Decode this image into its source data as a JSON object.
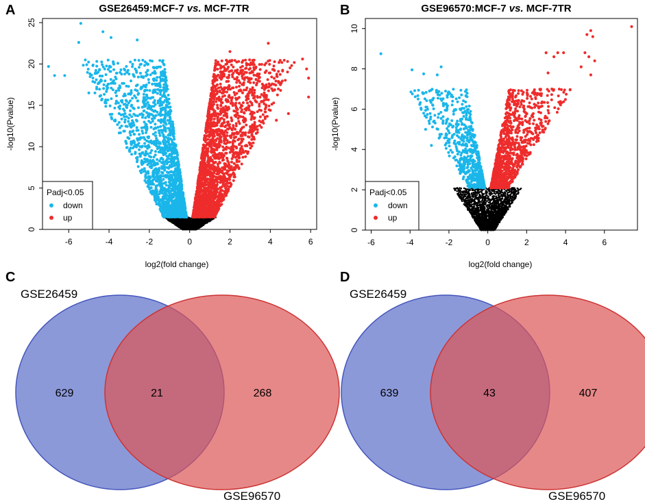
{
  "chart_data": [
    {
      "panel": "A",
      "type": "scatter",
      "title_prefix": "GSE26459:MCF-7",
      "title_vs": "vs.",
      "title_suffix": "MCF-7TR",
      "xlabel": "log2(fold change)",
      "ylabel": "-log10(Pvalue)",
      "xlim": [
        -7.3,
        6.3
      ],
      "ylim": [
        0,
        25.5
      ],
      "xticks": [
        -6,
        -4,
        -2,
        0,
        2,
        4,
        6
      ],
      "yticks": [
        0,
        5,
        10,
        15,
        20,
        25
      ],
      "significance_threshold": 1.5,
      "legend": {
        "title": "Padj<0.05",
        "entries": [
          "down",
          "up"
        ],
        "position": "bottom-left"
      },
      "colors": {
        "down": "#1ab6ea",
        "up": "#ee2c2c",
        "ns": "#000000"
      },
      "outliers_down": [
        [
          -5.4,
          24.9
        ],
        [
          -4.3,
          23.9
        ],
        [
          -3.9,
          23.2
        ],
        [
          -5.5,
          22.6
        ],
        [
          -2.6,
          22.9
        ],
        [
          -7.0,
          19.7
        ],
        [
          -6.7,
          18.6
        ],
        [
          -6.2,
          18.6
        ],
        [
          -4.8,
          19.8
        ],
        [
          -4.7,
          16.5
        ],
        [
          -5.0,
          16.5
        ],
        [
          -2.7,
          19.4
        ],
        [
          -1.8,
          19.6
        ],
        [
          -3.5,
          14.0
        ]
      ],
      "outliers_up": [
        [
          3.9,
          22.5
        ],
        [
          5.6,
          20.6
        ],
        [
          5.8,
          19.4
        ],
        [
          5.9,
          18.3
        ],
        [
          4.5,
          17.5
        ],
        [
          5.9,
          16.0
        ],
        [
          4.0,
          14.4
        ],
        [
          3.8,
          15.7
        ],
        [
          4.9,
          14.0
        ],
        [
          2.0,
          21.5
        ],
        [
          2.6,
          20.2
        ],
        [
          3.7,
          16.5
        ],
        [
          4.3,
          13.2
        ]
      ],
      "n_down": 1900,
      "n_up": 2300,
      "n_ns": 1500,
      "spread_down": 3.3,
      "spread_up": 3.2,
      "max_y": 20.5
    },
    {
      "panel": "B",
      "type": "scatter",
      "title_prefix": "GSE96570:MCF-7",
      "title_vs": "vs.",
      "title_suffix": "MCF-7TR",
      "xlabel": "log2(fold change)",
      "ylabel": "-log10(Pvalue)",
      "xlim": [
        -6.3,
        7.7
      ],
      "ylim": [
        0,
        10.5
      ],
      "xticks": [
        -6,
        -4,
        -2,
        0,
        2,
        4,
        6
      ],
      "yticks": [
        0,
        2,
        4,
        6,
        8,
        10
      ],
      "significance_threshold": 2.1,
      "legend": {
        "title": "Padj<0.05",
        "entries": [
          "down",
          "up"
        ],
        "position": "bottom-left"
      },
      "colors": {
        "down": "#1ab6ea",
        "up": "#ee2c2c",
        "ns": "#000000"
      },
      "outliers_down": [
        [
          -5.5,
          8.75
        ],
        [
          -3.9,
          7.95
        ],
        [
          -3.3,
          7.75
        ],
        [
          -2.4,
          8.1
        ],
        [
          -2.6,
          7.7
        ],
        [
          -3.0,
          6.9
        ],
        [
          -3.3,
          5.8
        ],
        [
          -3.2,
          5.0
        ],
        [
          -2.9,
          4.2
        ]
      ],
      "outliers_up": [
        [
          7.4,
          10.1
        ],
        [
          5.3,
          9.9
        ],
        [
          5.1,
          9.7
        ],
        [
          5.4,
          9.6
        ],
        [
          5.0,
          8.8
        ],
        [
          5.2,
          8.6
        ],
        [
          5.5,
          8.4
        ],
        [
          4.8,
          8.1
        ],
        [
          5.3,
          7.7
        ],
        [
          3.6,
          8.8
        ],
        [
          3.4,
          8.6
        ],
        [
          3.9,
          8.8
        ],
        [
          3.0,
          8.8
        ],
        [
          3.1,
          7.8
        ],
        [
          3.3,
          7.0
        ]
      ],
      "n_down": 650,
      "n_up": 1100,
      "n_ns": 2300,
      "spread_down": 2.4,
      "spread_up": 2.6,
      "max_y": 7.0
    }
  ],
  "venns": [
    {
      "panel": "C",
      "left_label": "GSE26459",
      "right_label": "GSE96570",
      "left_only": "629",
      "overlap": "21",
      "right_only": "268"
    },
    {
      "panel": "D",
      "left_label": "GSE26459",
      "right_label": "GSE96570",
      "left_only": "639",
      "overlap": "43",
      "right_only": "407"
    }
  ],
  "venn_colors": {
    "left": "#6677cc",
    "right": "#dd5555"
  }
}
